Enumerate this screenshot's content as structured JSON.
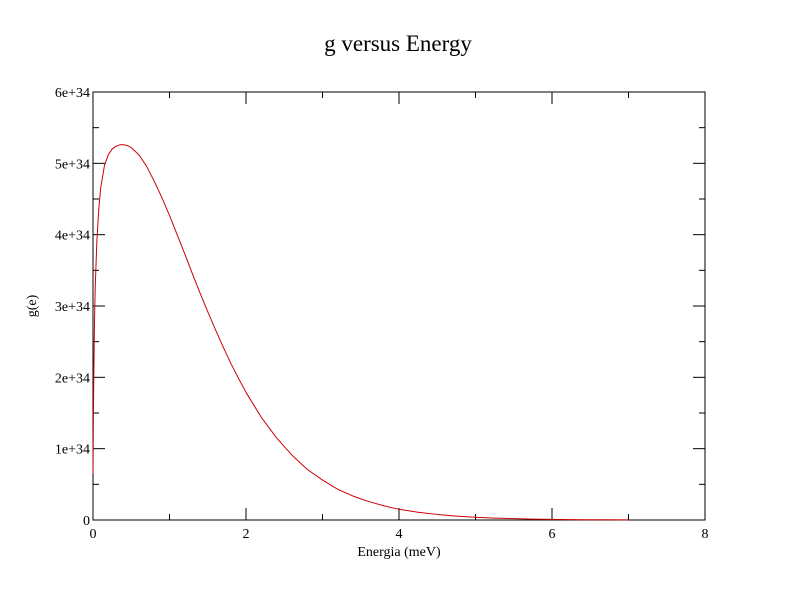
{
  "chart_data": {
    "type": "line",
    "title": "g versus Energy",
    "xlabel": "Energia (meV)",
    "ylabel": "g(e)",
    "xlim": [
      0,
      8
    ],
    "ylim": [
      0,
      6e+34
    ],
    "xticks": [
      0,
      2,
      4,
      6,
      8
    ],
    "xtick_labels": [
      "0",
      "2",
      "4",
      "6",
      "8"
    ],
    "yticks": [
      0,
      1e+34,
      2e+34,
      3e+34,
      4e+34,
      5e+34,
      6e+34
    ],
    "ytick_labels": [
      "0",
      "1e+34",
      "2e+34",
      "3e+34",
      "4e+34",
      "5e+34",
      "6e+34"
    ],
    "grid": false,
    "series": [
      {
        "color": "#cc0000",
        "x": [
          0.0,
          0.005,
          0.01,
          0.02,
          0.03,
          0.05,
          0.075,
          0.1,
          0.15,
          0.2,
          0.25,
          0.3,
          0.35,
          0.4,
          0.45,
          0.5,
          0.6,
          0.7,
          0.8,
          0.9,
          1.0,
          1.1,
          1.2,
          1.3,
          1.4,
          1.5,
          1.6,
          1.7,
          1.8,
          1.9,
          2.0,
          2.2,
          2.4,
          2.6,
          2.8,
          3.0,
          3.2,
          3.4,
          3.6,
          3.8,
          4.0,
          4.25,
          4.5,
          4.75,
          5.0,
          5.25,
          5.5,
          5.75,
          6.0,
          6.25,
          6.5,
          6.75,
          7.0
        ],
        "y": [
          6.5e+33,
          1.4e+34,
          2e+34,
          2.8e+34,
          3.3e+34,
          3.9e+34,
          4.35e+34,
          4.65e+34,
          4.97e+34,
          5.12e+34,
          5.2e+34,
          5.24e+34,
          5.26e+34,
          5.26e+34,
          5.25e+34,
          5.22e+34,
          5.12e+34,
          4.96e+34,
          4.75e+34,
          4.52e+34,
          4.27e+34,
          4e+34,
          3.73e+34,
          3.45e+34,
          3.18e+34,
          2.92e+34,
          2.67e+34,
          2.43e+34,
          2.2e+34,
          1.99e+34,
          1.79e+34,
          1.44e+34,
          1.15e+34,
          9.1e+33,
          7.1e+33,
          5.6e+33,
          4.3e+33,
          3.35e+33,
          2.6e+33,
          2e+33,
          1.5e+33,
          1.08e+33,
          7.8e+32,
          5.5e+32,
          3.9e+32,
          2.7e+32,
          1.9e+32,
          1.3e+32,
          9e+31,
          6e+31,
          4e+31,
          2.7e+31,
          1.8e+31
        ]
      }
    ]
  }
}
